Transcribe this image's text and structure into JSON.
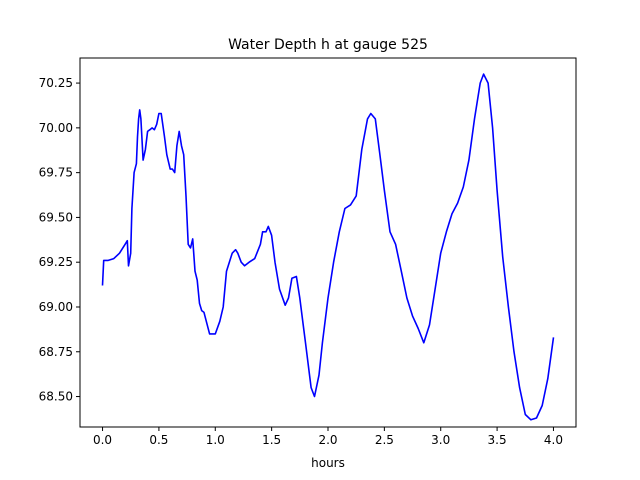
{
  "chart_data": {
    "type": "line",
    "title": "Water Depth h at gauge 525",
    "xlabel": "hours",
    "ylabel": "",
    "xlim": [
      -0.2,
      4.2
    ],
    "ylim": [
      68.33,
      70.39
    ],
    "xticks": [
      0.0,
      0.5,
      1.0,
      1.5,
      2.0,
      2.5,
      3.0,
      3.5,
      4.0
    ],
    "xtick_labels": [
      "0.0",
      "0.5",
      "1.0",
      "1.5",
      "2.0",
      "2.5",
      "3.0",
      "3.5",
      "4.0"
    ],
    "yticks": [
      68.5,
      68.75,
      69.0,
      69.25,
      69.5,
      69.75,
      70.0,
      70.25
    ],
    "ytick_labels": [
      "68.50",
      "68.75",
      "69.00",
      "69.25",
      "69.50",
      "69.75",
      "70.00",
      "70.25"
    ],
    "grid": false,
    "series": [
      {
        "color": "#0000ff",
        "x": [
          0.0,
          0.01,
          0.05,
          0.1,
          0.15,
          0.2,
          0.22,
          0.23,
          0.25,
          0.26,
          0.28,
          0.3,
          0.31,
          0.32,
          0.33,
          0.34,
          0.36,
          0.38,
          0.4,
          0.42,
          0.44,
          0.46,
          0.48,
          0.5,
          0.52,
          0.55,
          0.57,
          0.6,
          0.62,
          0.64,
          0.66,
          0.68,
          0.7,
          0.72,
          0.74,
          0.76,
          0.78,
          0.8,
          0.82,
          0.84,
          0.86,
          0.88,
          0.9,
          0.92,
          0.95,
          1.0,
          1.04,
          1.07,
          1.1,
          1.15,
          1.18,
          1.2,
          1.23,
          1.26,
          1.3,
          1.35,
          1.4,
          1.42,
          1.45,
          1.47,
          1.5,
          1.53,
          1.57,
          1.62,
          1.65,
          1.68,
          1.72,
          1.75,
          1.78,
          1.8,
          1.85,
          1.88,
          1.92,
          1.95,
          2.0,
          2.05,
          2.1,
          2.15,
          2.2,
          2.25,
          2.3,
          2.35,
          2.38,
          2.42,
          2.46,
          2.5,
          2.55,
          2.6,
          2.65,
          2.7,
          2.75,
          2.8,
          2.85,
          2.9,
          2.95,
          3.0,
          3.05,
          3.1,
          3.15,
          3.2,
          3.25,
          3.3,
          3.35,
          3.38,
          3.42,
          3.46,
          3.5,
          3.55,
          3.6,
          3.65,
          3.7,
          3.75,
          3.8,
          3.85,
          3.9,
          3.95,
          4.0
        ],
        "y": [
          69.12,
          69.26,
          69.26,
          69.27,
          69.3,
          69.35,
          69.37,
          69.23,
          69.3,
          69.55,
          69.75,
          69.8,
          69.95,
          70.05,
          70.1,
          70.05,
          69.82,
          69.88,
          69.98,
          69.99,
          70.0,
          69.99,
          70.02,
          70.08,
          70.08,
          69.95,
          69.85,
          69.77,
          69.77,
          69.75,
          69.9,
          69.98,
          69.9,
          69.85,
          69.62,
          69.35,
          69.33,
          69.38,
          69.2,
          69.15,
          69.02,
          68.98,
          68.97,
          68.92,
          68.85,
          68.85,
          68.92,
          69.0,
          69.2,
          69.3,
          69.32,
          69.3,
          69.25,
          69.23,
          69.25,
          69.27,
          69.35,
          69.42,
          69.42,
          69.45,
          69.4,
          69.25,
          69.1,
          69.01,
          69.05,
          69.16,
          69.17,
          69.05,
          68.9,
          68.8,
          68.55,
          68.5,
          68.62,
          68.8,
          69.05,
          69.25,
          69.42,
          69.55,
          69.57,
          69.62,
          69.88,
          70.05,
          70.08,
          70.05,
          69.85,
          69.65,
          69.42,
          69.35,
          69.2,
          69.05,
          68.95,
          68.88,
          68.8,
          68.9,
          69.1,
          69.3,
          69.42,
          69.52,
          69.58,
          69.67,
          69.82,
          70.05,
          70.25,
          70.3,
          70.25,
          70.0,
          69.65,
          69.28,
          69.0,
          68.75,
          68.55,
          68.4,
          68.37,
          68.38,
          68.45,
          68.6,
          68.83
        ]
      }
    ]
  }
}
